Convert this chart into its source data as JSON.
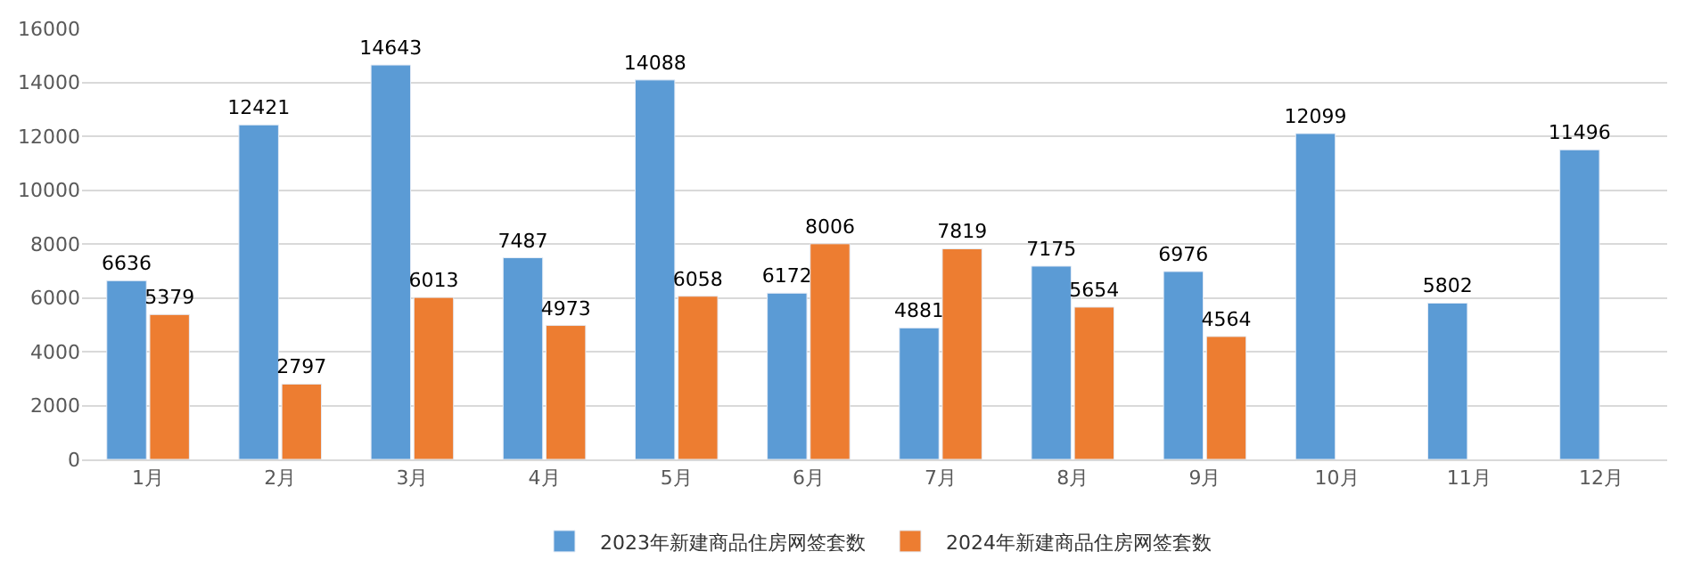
{
  "chart_data": {
    "type": "bar",
    "categories": [
      "1月",
      "2月",
      "3月",
      "4月",
      "5月",
      "6月",
      "7月",
      "8月",
      "9月",
      "10月",
      "11月",
      "12月"
    ],
    "series": [
      {
        "name": "2023年新建商品住房网签套数",
        "color": "#5b9bd5",
        "values": [
          6636,
          12421,
          14643,
          7487,
          14088,
          6172,
          4881,
          7175,
          6976,
          12099,
          5802,
          11496
        ]
      },
      {
        "name": "2024年新建商品住房网签套数",
        "color": "#ed7d31",
        "values": [
          5379,
          2797,
          6013,
          4973,
          6058,
          8006,
          7819,
          5654,
          4564,
          null,
          null,
          null
        ]
      }
    ],
    "ylim": [
      0,
      16000
    ],
    "yticks": [
      0,
      2000,
      4000,
      6000,
      8000,
      10000,
      12000,
      14000,
      16000
    ],
    "grid": "y",
    "legend": "bottom",
    "data_labels": true
  }
}
